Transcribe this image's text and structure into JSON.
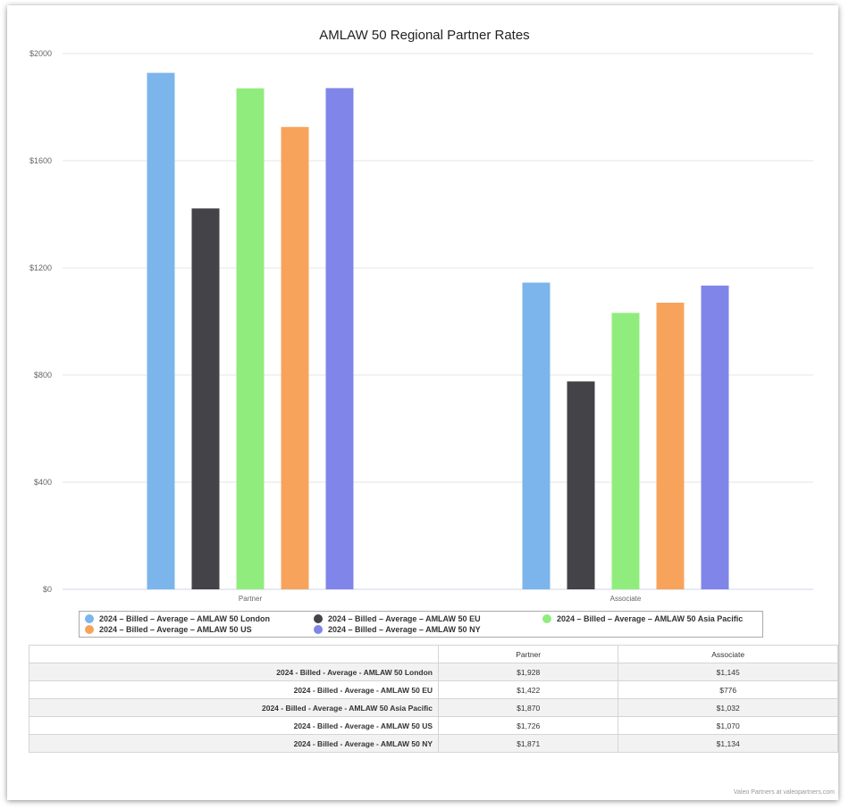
{
  "chart_data": {
    "type": "bar",
    "title": "AMLAW 50 Regional Partner Rates",
    "categories": [
      "Partner",
      "Associate"
    ],
    "ylim": [
      0,
      2000
    ],
    "yticks": [
      "$0",
      "$400",
      "$800",
      "$1200",
      "$1600",
      "$2000"
    ],
    "ytick_values": [
      0,
      400,
      800,
      1200,
      1600,
      2000
    ],
    "grid": true,
    "legend_position": "bottom",
    "series": [
      {
        "name": "2024 - Billed - Average - AMLAW 50 London",
        "color": "#7cb5ec",
        "values": [
          1928,
          1145
        ]
      },
      {
        "name": "2024 - Billed - Average - AMLAW 50 EU",
        "color": "#434348",
        "values": [
          1422,
          776
        ]
      },
      {
        "name": "2024 - Billed - Average - AMLAW 50 Asia Pacific",
        "color": "#90ed7d",
        "values": [
          1870,
          1032
        ]
      },
      {
        "name": "2024 - Billed - Average - AMLAW 50 US",
        "color": "#f7a35c",
        "values": [
          1726,
          1070
        ]
      },
      {
        "name": "2024 - Billed - Average - AMLAW 50 NY",
        "color": "#8085e9",
        "values": [
          1871,
          1134
        ]
      }
    ]
  },
  "table": {
    "headers": [
      "",
      "Partner",
      "Associate"
    ],
    "rows": [
      {
        "label": "2024 - Billed - Average - AMLAW 50 London",
        "partner": "$1,928",
        "associate": "$1,145"
      },
      {
        "label": "2024 - Billed - Average - AMLAW 50 EU",
        "partner": "$1,422",
        "associate": "$776"
      },
      {
        "label": "2024 - Billed - Average - AMLAW 50 Asia Pacific",
        "partner": "$1,870",
        "associate": "$1,032"
      },
      {
        "label": "2024 - Billed - Average - AMLAW 50 US",
        "partner": "$1,726",
        "associate": "$1,070"
      },
      {
        "label": "2024 - Billed - Average - AMLAW 50 NY",
        "partner": "$1,871",
        "associate": "$1,134"
      }
    ]
  },
  "legend": {
    "labels": [
      "2024 – Billed – Average – AMLAW 50 London",
      "2024 – Billed – Average – AMLAW 50 EU",
      "2024 – Billed – Average – AMLAW 50 Asia Pacific",
      "2024 – Billed – Average – AMLAW 50 US",
      "2024 – Billed – Average – AMLAW 50 NY"
    ]
  },
  "footer": {
    "credit": "Valeo Partners at valeopartners.com"
  }
}
